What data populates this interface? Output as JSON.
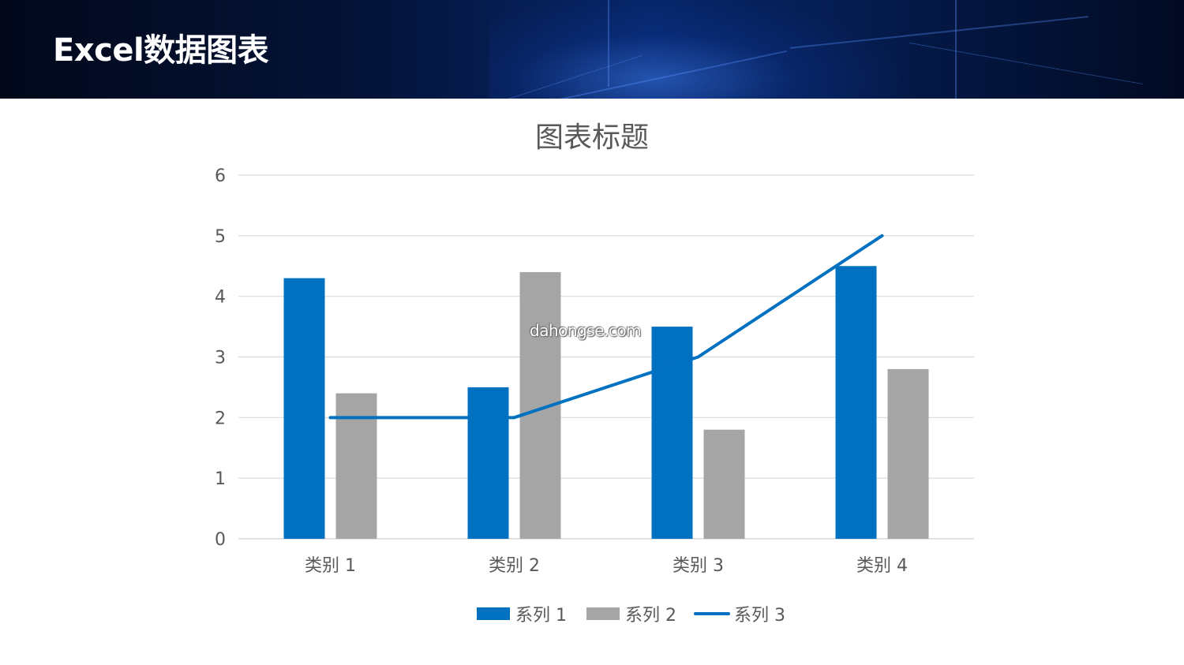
{
  "header": {
    "title": "Excel数据图表"
  },
  "watermark": "dahongse.com",
  "chart_data": {
    "type": "bar",
    "title": "图表标题",
    "categories": [
      "类别 1",
      "类别 2",
      "类别 3",
      "类别 4"
    ],
    "series": [
      {
        "name": "系列 1",
        "type": "bar",
        "color": "#0070C0",
        "values": [
          4.3,
          2.5,
          3.5,
          4.5
        ]
      },
      {
        "name": "系列 2",
        "type": "bar",
        "color": "#A5A5A5",
        "values": [
          2.4,
          4.4,
          1.8,
          2.8
        ]
      },
      {
        "name": "系列 3",
        "type": "line",
        "color": "#0070C0",
        "values": [
          2,
          2,
          3,
          5
        ]
      }
    ],
    "ylim": [
      0,
      6
    ],
    "yticks": [
      0,
      1,
      2,
      3,
      4,
      5,
      6
    ],
    "grid": true,
    "legend": "bottom"
  }
}
